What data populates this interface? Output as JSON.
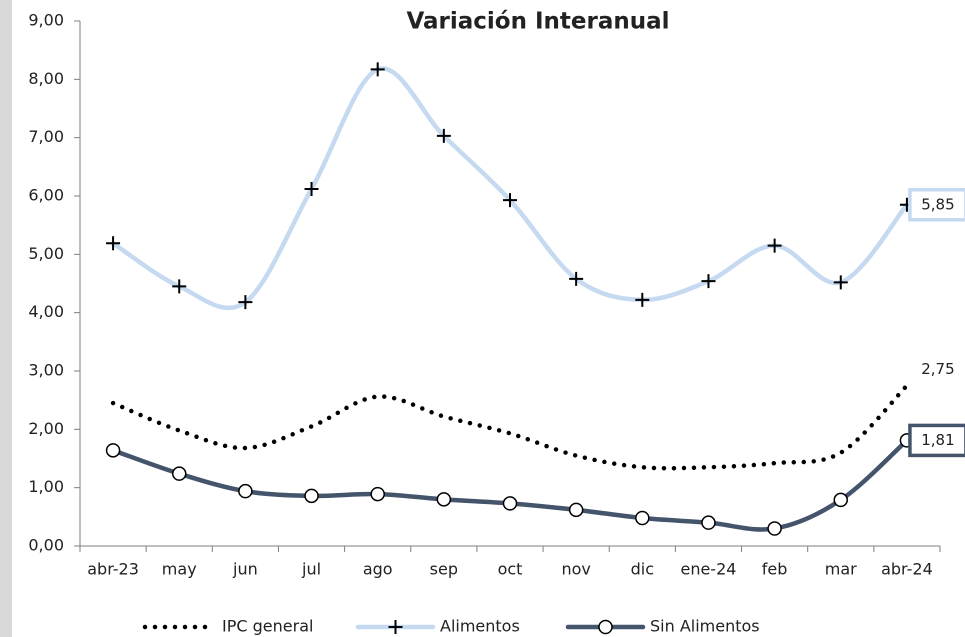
{
  "chart_data": {
    "type": "line",
    "title": "Variación Interanual",
    "categories": [
      "abr-23",
      "may",
      "jun",
      "jul",
      "ago",
      "sep",
      "oct",
      "nov",
      "dic",
      "ene-24",
      "feb",
      "mar",
      "abr-24"
    ],
    "ylim": [
      0,
      9
    ],
    "yticks": [
      {
        "value": 0,
        "label": "0,00"
      },
      {
        "value": 1,
        "label": "1,00"
      },
      {
        "value": 2,
        "label": "2,00"
      },
      {
        "value": 3,
        "label": "3,00"
      },
      {
        "value": 4,
        "label": "4,00"
      },
      {
        "value": 5,
        "label": "5,00"
      },
      {
        "value": 6,
        "label": "6,00"
      },
      {
        "value": 7,
        "label": "7,00"
      },
      {
        "value": 8,
        "label": "8,00"
      },
      {
        "value": 9,
        "label": "9,00"
      }
    ],
    "grid": false,
    "legend": "bottom",
    "series": [
      {
        "name": "IPC general",
        "color": "#000000",
        "style": "dotted",
        "marker": "none",
        "values": [
          2.45,
          1.98,
          1.68,
          2.05,
          2.56,
          2.22,
          1.93,
          1.55,
          1.35,
          1.35,
          1.42,
          1.6,
          2.75
        ],
        "value_labels": [
          null,
          null,
          null,
          null,
          null,
          null,
          null,
          null,
          null,
          null,
          null,
          null,
          "2,75"
        ]
      },
      {
        "name": "Alimentos",
        "color": "#c5d9f1",
        "style": "solid",
        "marker": "plus",
        "values": [
          5.19,
          4.45,
          4.18,
          6.12,
          8.17,
          7.03,
          5.93,
          4.58,
          4.22,
          4.54,
          5.15,
          4.52,
          5.85
        ],
        "value_labels": [
          null,
          null,
          null,
          null,
          null,
          null,
          null,
          null,
          null,
          null,
          null,
          null,
          "5,85"
        ]
      },
      {
        "name": "Sin Alimentos",
        "color": "#44546a",
        "style": "solid",
        "marker": "circle",
        "values": [
          1.64,
          1.24,
          0.94,
          0.86,
          0.89,
          0.8,
          0.73,
          0.62,
          0.48,
          0.4,
          0.3,
          0.79,
          1.81
        ],
        "value_labels": [
          null,
          null,
          null,
          null,
          null,
          null,
          null,
          null,
          null,
          null,
          null,
          null,
          "1,81"
        ]
      }
    ]
  }
}
